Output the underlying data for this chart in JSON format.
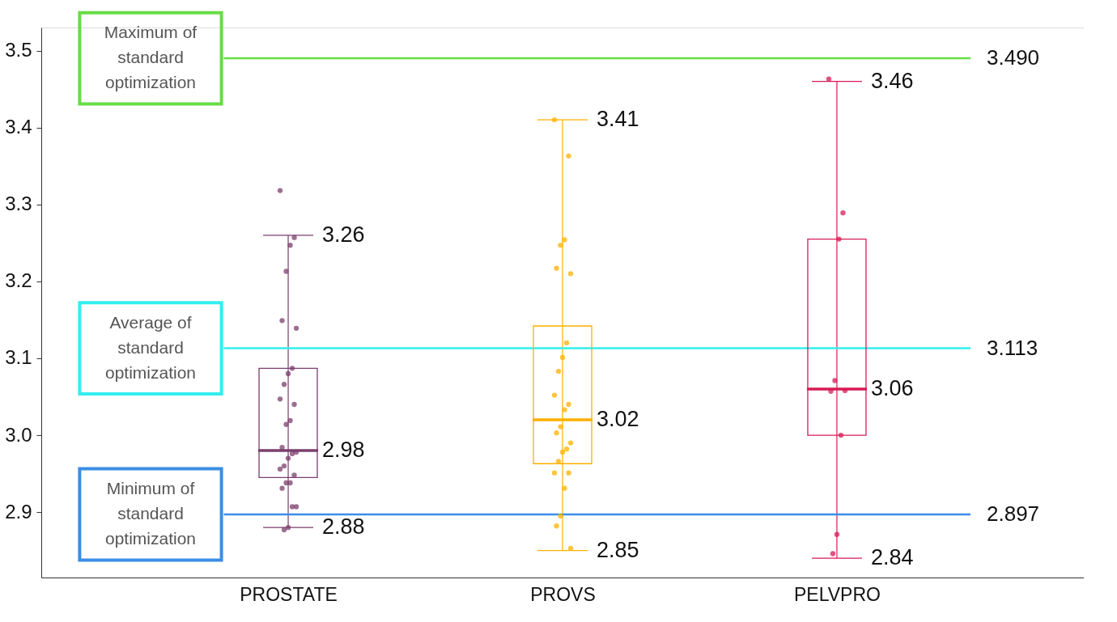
{
  "chart_data": {
    "type": "box",
    "categories": [
      "PROSTATE",
      "PROVS",
      "PELVPRO"
    ],
    "boxes": [
      {
        "low": 2.88,
        "q1": 2.945,
        "median": 2.98,
        "q3": 3.087,
        "high": 3.26
      },
      {
        "low": 2.85,
        "q1": 2.963,
        "median": 3.02,
        "q3": 3.142,
        "high": 3.41
      },
      {
        "low": 2.84,
        "q1": 3.0,
        "median": 3.06,
        "q3": 3.255,
        "high": 3.46
      }
    ],
    "colors": [
      "#7b3f6e",
      "#ffb000",
      "#d81b55"
    ],
    "series": [
      {
        "type": "scatter",
        "color": "#7b3f6e",
        "x": [
          "PROSTATE",
          "PROSTATE",
          "PROSTATE",
          "PROSTATE",
          "PROSTATE",
          "PROSTATE",
          "PROSTATE",
          "PROSTATE",
          "PROSTATE",
          "PROSTATE",
          "PROSTATE",
          "PROSTATE",
          "PROSTATE",
          "PROSTATE",
          "PROSTATE",
          "PROSTATE",
          "PROSTATE",
          "PROSTATE",
          "PROSTATE",
          "PROSTATE",
          "PROSTATE",
          "PROSTATE",
          "PROSTATE",
          "PROSTATE",
          "PROSTATE",
          "PROSTATE",
          "PROSTATE"
        ],
        "values": [
          3.318,
          3.257,
          3.247,
          3.213,
          3.149,
          3.139,
          3.087,
          3.08,
          3.066,
          3.047,
          3.04,
          3.019,
          3.014,
          2.984,
          2.978,
          2.976,
          2.97,
          2.96,
          2.956,
          2.948,
          2.938,
          2.938,
          2.931,
          2.907,
          2.907,
          2.88,
          2.877
        ]
      },
      {
        "type": "scatter",
        "color": "#ffb000",
        "x": [
          "PROVS",
          "PROVS",
          "PROVS",
          "PROVS",
          "PROVS",
          "PROVS",
          "PROVS",
          "PROVS",
          "PROVS",
          "PROVS",
          "PROVS",
          "PROVS",
          "PROVS",
          "PROVS",
          "PROVS",
          "PROVS",
          "PROVS",
          "PROVS",
          "PROVS",
          "PROVS",
          "PROVS",
          "PROVS",
          "PROVS",
          "PROVS"
        ],
        "values": [
          3.41,
          3.363,
          3.254,
          3.247,
          3.217,
          3.21,
          3.12,
          3.101,
          3.083,
          3.052,
          3.04,
          3.033,
          3.011,
          3.003,
          2.99,
          2.982,
          2.978,
          2.966,
          2.951,
          2.951,
          2.931,
          2.895,
          2.882,
          2.853
        ]
      },
      {
        "type": "scatter",
        "color": "#d81b55",
        "x": [
          "PELVPRO",
          "PELVPRO",
          "PELVPRO",
          "PELVPRO",
          "PELVPRO",
          "PELVPRO",
          "PELVPRO",
          "PELVPRO",
          "PELVPRO"
        ],
        "values": [
          3.463,
          3.289,
          3.255,
          3.071,
          3.057,
          3.058,
          3.0,
          2.871,
          2.846
        ]
      }
    ],
    "ylim": [
      2.815,
      3.53
    ],
    "yticks": [
      2.9,
      {
        "value": 3,
        "label": "3.0"
      },
      3.1,
      3.2,
      3.3,
      3.4,
      3.5
    ],
    "grid": false,
    "legend": false,
    "marker": "circle",
    "ref_lines": [
      {
        "axis": "y",
        "value": 3.49,
        "label": "3.490",
        "color": "#66dd44"
      },
      {
        "axis": "y",
        "value": 3.113,
        "label": "3.113",
        "color": "#33eeee"
      },
      {
        "axis": "y",
        "value": 2.897,
        "label": "2.897",
        "color": "#3a8ee6"
      }
    ],
    "annotations": [
      "Maximum of standard optimization",
      "Average of standard optimization",
      "Minimum of standard optimization",
      {
        "text": "3.26",
        "x": "PROSTATE",
        "y": 3.26
      },
      {
        "text": "2.98",
        "x": "PROSTATE",
        "y": 2.98
      },
      {
        "text": "2.88",
        "x": "PROSTATE",
        "y": 2.88
      },
      {
        "text": "3.41",
        "x": "PROVS",
        "y": 3.41
      },
      {
        "text": "3.02",
        "x": "PROVS",
        "y": 3.02
      },
      {
        "text": "2.85",
        "x": "PROVS",
        "y": 2.85
      },
      {
        "text": "3.46",
        "x": "PELVPRO",
        "y": 3.46
      },
      {
        "text": "3.06",
        "x": "PELVPRO",
        "y": 3.06
      },
      {
        "text": "2.84",
        "x": "PELVPRO",
        "y": 2.84
      }
    ]
  }
}
